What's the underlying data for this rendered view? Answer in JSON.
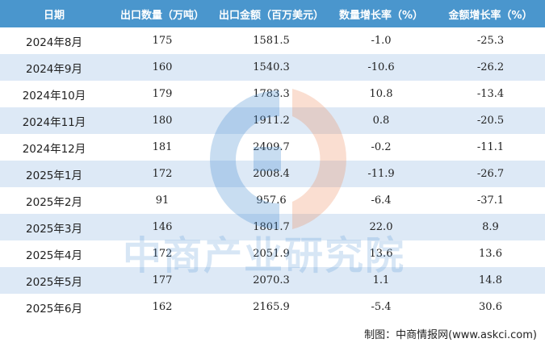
{
  "table": {
    "headers": [
      "日期",
      "出口数量（万吨）",
      "出口金额（百万美元）",
      "数量增长率（%）",
      "金额增长率（%）"
    ],
    "rows": [
      [
        "2024年8月",
        "175",
        "1581.5",
        "-1.0",
        "-25.3"
      ],
      [
        "2024年9月",
        "160",
        "1540.3",
        "-10.6",
        "-26.2"
      ],
      [
        "2024年10月",
        "179",
        "1783.3",
        "10.8",
        "-13.4"
      ],
      [
        "2024年11月",
        "180",
        "1911.2",
        "0.8",
        "-20.5"
      ],
      [
        "2024年12月",
        "181",
        "2409.7",
        "-0.2",
        "-11.1"
      ],
      [
        "2025年1月",
        "172",
        "2008.4",
        "-11.9",
        "-26.7"
      ],
      [
        "2025年2月",
        "91",
        "957.6",
        "-6.4",
        "-37.1"
      ],
      [
        "2025年3月",
        "146",
        "1801.7",
        "22.0",
        "8.9"
      ],
      [
        "2025年4月",
        "172",
        "2051.9",
        "13.6",
        "13.6"
      ],
      [
        "2025年5月",
        "177",
        "2070.3",
        "1.1",
        "14.8"
      ],
      [
        "2025年6月",
        "162",
        "2165.9",
        "-5.4",
        "30.6"
      ]
    ]
  },
  "watermark": {
    "text": "中商产业研究院",
    "logo": "askci-logo-icon"
  },
  "footer": {
    "source": "制图：中商情报网(www.askci.com)"
  },
  "colors": {
    "header_bg": "#4a96cd",
    "stripe": "#dde9f6",
    "logo_blue": "#4a8fd0",
    "logo_orange": "#ee8a5a"
  }
}
